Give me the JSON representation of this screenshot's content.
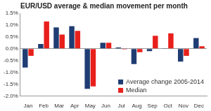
{
  "chart_data": {
    "type": "bar",
    "title": "EUR/USD average & median movement per month",
    "categories": [
      "Jan",
      "Feb",
      "Mar",
      "Apr",
      "May",
      "Jun",
      "Jul",
      "Aug",
      "Sep",
      "Oct",
      "Nov",
      "Dec"
    ],
    "series": [
      {
        "name": "Average change 2005-2014",
        "color": "#1f3c73",
        "values": [
          -0.8,
          0.2,
          0.9,
          0.95,
          -1.7,
          0.25,
          0.05,
          -0.65,
          -0.1,
          0.02,
          -0.55,
          0.45
        ]
      },
      {
        "name": "Median",
        "color": "#e8201c",
        "values": [
          -0.3,
          1.15,
          0.6,
          0.75,
          -1.6,
          0.25,
          -0.03,
          -0.15,
          0.55,
          0.65,
          -0.3,
          0.1
        ]
      }
    ],
    "ylim": [
      -2.0,
      1.5
    ],
    "yticks": [
      {
        "value": -2.0,
        "label": "-2.0%"
      },
      {
        "value": -1.5,
        "label": "-1.5%"
      },
      {
        "value": -1.0,
        "label": "-1.0%"
      },
      {
        "value": -0.5,
        "label": "-0.5%"
      },
      {
        "value": 0,
        "label": "0.0%"
      },
      {
        "value": 0.5,
        "label": "0.5%"
      },
      {
        "value": 1.0,
        "label": "1.0%"
      },
      {
        "value": 1.5,
        "label": "1.5%"
      }
    ],
    "grid": false,
    "legend": "lower right"
  }
}
